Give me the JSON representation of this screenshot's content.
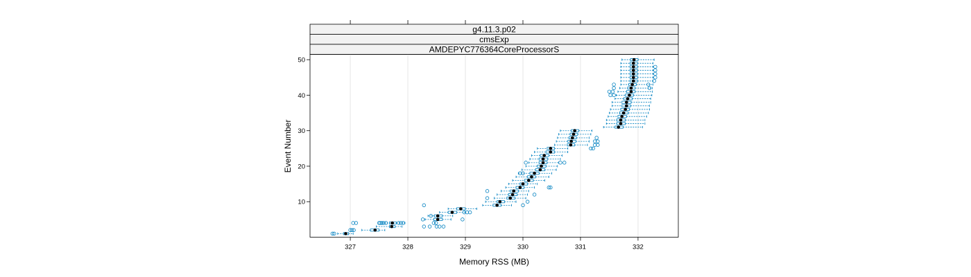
{
  "strips": [
    "g4.11.3.p02",
    "cmsExp",
    "AMDEPYC776364CoreProcessorS"
  ],
  "chart_data": {
    "type": "box",
    "orientation": "horizontal",
    "xlabel": "Memory RSS (MB)",
    "ylabel": "Event Number",
    "xlim": [
      326.3,
      332.7
    ],
    "ylim": [
      0,
      51.5
    ],
    "xticks": [
      327,
      328,
      329,
      330,
      331,
      332
    ],
    "yticks": [
      10,
      20,
      30,
      40,
      50
    ],
    "top_ticks": [
      327,
      328,
      329,
      330,
      331,
      332
    ],
    "grid": "vertical",
    "colors": {
      "box": "#0080c0",
      "median": "#000000",
      "strip_bg": "#f2f2f2",
      "grid": "#e6e6e6"
    },
    "events": [
      1,
      2,
      3,
      4,
      5,
      6,
      7,
      8,
      9,
      10,
      11,
      12,
      13,
      14,
      15,
      16,
      17,
      18,
      19,
      20,
      21,
      22,
      23,
      24,
      25,
      26,
      27,
      28,
      29,
      30,
      31,
      32,
      33,
      34,
      35,
      36,
      37,
      38,
      39,
      40,
      41,
      42,
      43,
      44,
      45,
      46,
      47,
      48,
      49,
      50
    ],
    "medians": [
      326.92,
      327.43,
      327.72,
      327.73,
      328.52,
      328.52,
      328.77,
      328.92,
      329.55,
      329.6,
      329.78,
      329.82,
      329.84,
      329.95,
      330.0,
      330.1,
      330.15,
      330.2,
      330.3,
      330.32,
      330.35,
      330.35,
      330.37,
      330.48,
      330.48,
      330.83,
      330.84,
      330.86,
      330.88,
      330.9,
      331.66,
      331.7,
      331.7,
      331.72,
      331.75,
      331.78,
      331.8,
      331.8,
      331.82,
      331.85,
      331.88,
      331.88,
      331.9,
      331.92,
      331.92,
      331.92,
      331.92,
      331.92,
      331.92,
      331.93
    ],
    "box_low": [
      326.88,
      327.35,
      327.68,
      327.68,
      328.45,
      328.46,
      328.7,
      328.85,
      329.48,
      329.55,
      329.72,
      329.75,
      329.78,
      329.88,
      329.95,
      330.03,
      330.08,
      330.12,
      330.22,
      330.25,
      330.28,
      330.28,
      330.3,
      330.4,
      330.42,
      330.77,
      330.78,
      330.8,
      330.82,
      330.84,
      331.6,
      331.63,
      331.63,
      331.65,
      331.68,
      331.7,
      331.72,
      331.72,
      331.75,
      331.78,
      331.8,
      331.82,
      331.84,
      331.86,
      331.86,
      331.86,
      331.86,
      331.86,
      331.86,
      331.87
    ],
    "box_high": [
      326.97,
      327.5,
      327.78,
      327.8,
      328.6,
      328.6,
      328.85,
      329.0,
      329.62,
      329.68,
      329.86,
      329.9,
      329.92,
      330.02,
      330.08,
      330.18,
      330.22,
      330.28,
      330.38,
      330.4,
      330.42,
      330.43,
      330.45,
      330.55,
      330.55,
      330.9,
      330.92,
      330.93,
      330.95,
      330.97,
      331.74,
      331.78,
      331.78,
      331.8,
      331.83,
      331.85,
      331.87,
      331.88,
      331.9,
      331.92,
      331.95,
      331.95,
      331.97,
      331.99,
      331.99,
      331.99,
      331.99,
      331.99,
      331.99,
      332.0
    ],
    "whisker_low": [
      326.78,
      327.2,
      327.45,
      327.55,
      328.3,
      328.35,
      328.55,
      328.7,
      329.3,
      329.35,
      329.5,
      329.55,
      329.62,
      329.7,
      329.75,
      329.82,
      329.88,
      329.92,
      329.98,
      330.05,
      330.1,
      330.12,
      330.15,
      330.2,
      330.25,
      330.55,
      330.58,
      330.6,
      330.62,
      330.65,
      331.4,
      331.45,
      331.45,
      331.48,
      331.5,
      331.52,
      331.55,
      331.55,
      331.6,
      331.62,
      331.65,
      331.68,
      331.7,
      331.7,
      331.7,
      331.7,
      331.7,
      331.7,
      331.7,
      331.72
    ],
    "whisker_high": [
      327.05,
      327.6,
      327.9,
      327.95,
      328.75,
      328.78,
      329.0,
      329.2,
      329.8,
      329.88,
      330.05,
      330.08,
      330.1,
      330.2,
      330.25,
      330.38,
      330.45,
      330.5,
      330.58,
      330.6,
      330.62,
      330.65,
      330.68,
      330.78,
      330.78,
      331.12,
      331.15,
      331.15,
      331.18,
      331.2,
      332.08,
      332.12,
      332.12,
      332.15,
      332.18,
      332.2,
      332.2,
      332.22,
      332.22,
      332.24,
      332.25,
      332.25,
      332.26,
      332.26,
      332.26,
      332.26,
      332.26,
      332.26,
      332.26,
      332.28
    ],
    "outliers": [
      {
        "event": 1,
        "x": [
          326.69,
          326.72
        ]
      },
      {
        "event": 2,
        "x": [
          327.0,
          327.03,
          327.06
        ]
      },
      {
        "event": 3,
        "x": [
          328.28,
          328.38,
          328.5,
          328.55,
          328.62
        ]
      },
      {
        "event": 4,
        "x": [
          327.05,
          327.1,
          327.5,
          327.52,
          327.55,
          327.58,
          327.62,
          327.84,
          327.88,
          327.92,
          328.45,
          328.49
        ]
      },
      {
        "event": 5,
        "x": [
          328.26,
          328.95
        ]
      },
      {
        "event": 6,
        "x": [
          328.4
        ]
      },
      {
        "event": 7,
        "x": [
          328.98,
          329.03,
          329.08
        ]
      },
      {
        "event": 9,
        "x": [
          328.28,
          330.0
        ]
      },
      {
        "event": 10,
        "x": [
          330.08
        ]
      },
      {
        "event": 11,
        "x": [
          329.38
        ]
      },
      {
        "event": 12,
        "x": [
          330.2
        ]
      },
      {
        "event": 13,
        "x": [
          329.38
        ]
      },
      {
        "event": 14,
        "x": [
          330.45,
          330.48
        ]
      },
      {
        "event": 18,
        "x": [
          329.95,
          330.0
        ]
      },
      {
        "event": 21,
        "x": [
          330.05,
          330.65,
          330.72
        ]
      },
      {
        "event": 25,
        "x": [
          331.18,
          331.22
        ]
      },
      {
        "event": 26,
        "x": [
          331.25,
          331.3
        ]
      },
      {
        "event": 27,
        "x": [
          331.25,
          331.3
        ]
      },
      {
        "event": 28,
        "x": [
          331.28
        ]
      },
      {
        "event": 40,
        "x": [
          331.52,
          331.58
        ]
      },
      {
        "event": 41,
        "x": [
          331.5,
          331.56
        ]
      },
      {
        "event": 42,
        "x": [
          331.58,
          332.2
        ]
      },
      {
        "event": 43,
        "x": [
          331.58,
          332.18
        ]
      },
      {
        "event": 44,
        "x": [
          332.28
        ]
      },
      {
        "event": 45,
        "x": [
          332.3
        ]
      },
      {
        "event": 46,
        "x": [
          332.3
        ]
      },
      {
        "event": 47,
        "x": [
          332.3
        ]
      },
      {
        "event": 48,
        "x": [
          332.3
        ]
      }
    ]
  }
}
